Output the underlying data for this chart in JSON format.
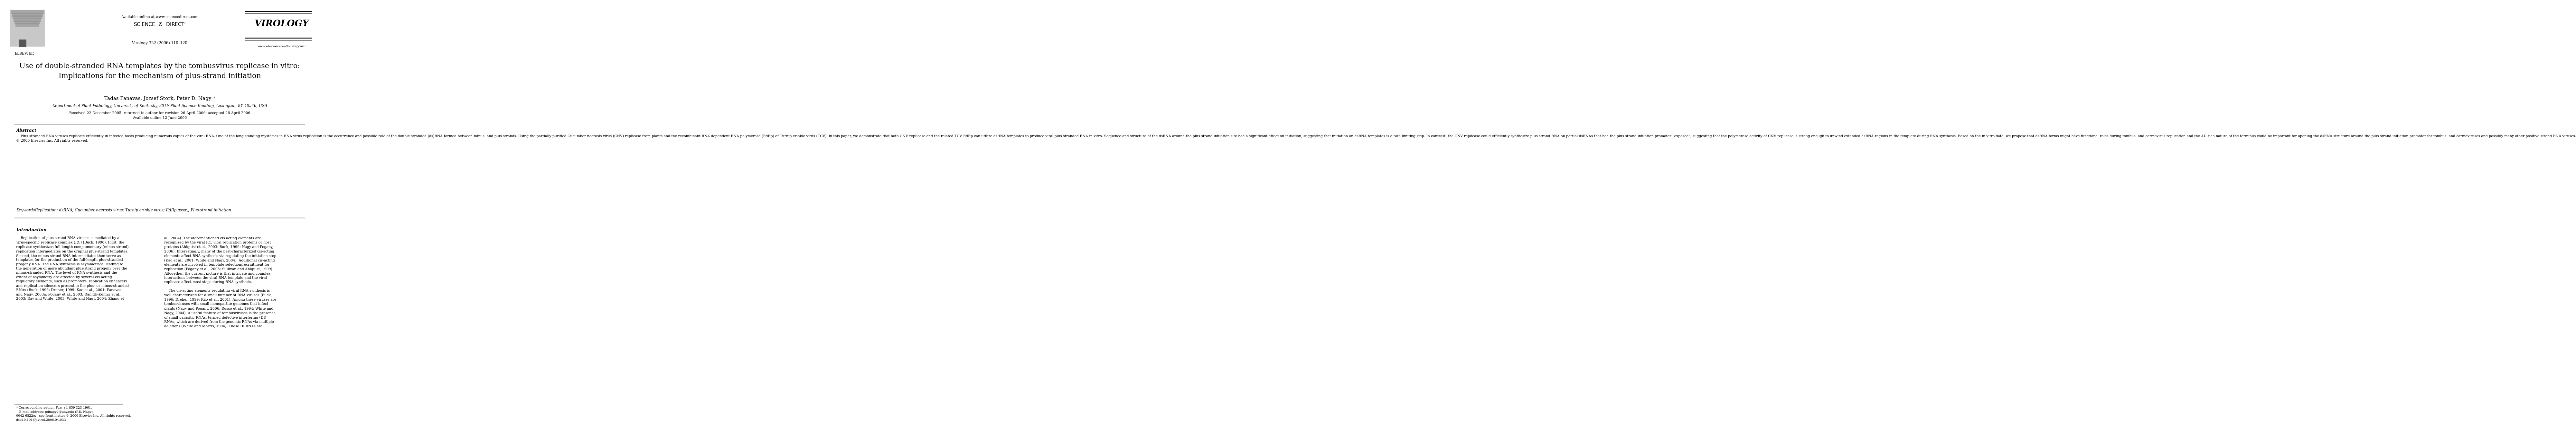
{
  "page_width": 9.92,
  "page_height": 13.23,
  "background_color": "#ffffff",
  "header": {
    "available_online": "Available online at www.sciencedirect.com",
    "sciencedirect_text": "SCIENCE  @  DIRECT",
    "journal_name": "VIROLOGY",
    "journal_volume": "Virology 352 (2006) 110–120",
    "journal_url": "www.elsevier.com/locate/yviro",
    "elsevier_text": "ELSEVIER"
  },
  "title": "Use of double-stranded RNA templates by the tombusvirus replicase in vitro:\nImplications for the mechanism of plus-strand initiation",
  "authors": "Tadas Panavas, Jozsef Stork, Peter D. Nagy *",
  "affiliation": "Department of Plant Pathology, University of Kentucky, 201F Plant Science Building, Lexington, KY 40546, USA",
  "date_line1": "Received 22 December 2005; returned to author for revision 26 April 2006; accepted 26 April 2006",
  "date_line2": "Available online 12 June 2006",
  "abstract_title": "Abstract",
  "keywords_label": "Keywords:",
  "keywords_text": "Replication; dsRNA; Cucumber necrosis virus; Turnip crinkle virus; RdRp assay; Plus-strand initiation",
  "introduction_title": "Introduction",
  "footer_note": "* Corresponding author. Fax: +1 859 323 1961.\n   E-mail address: pdnagy2@uky.edu (P.D. Nagy).",
  "footer_copy": "0042-6822/$ - see front matter © 2006 Elsevier Inc. All rights reserved.\ndoi:10.1016/j.virol.2006.04.033"
}
